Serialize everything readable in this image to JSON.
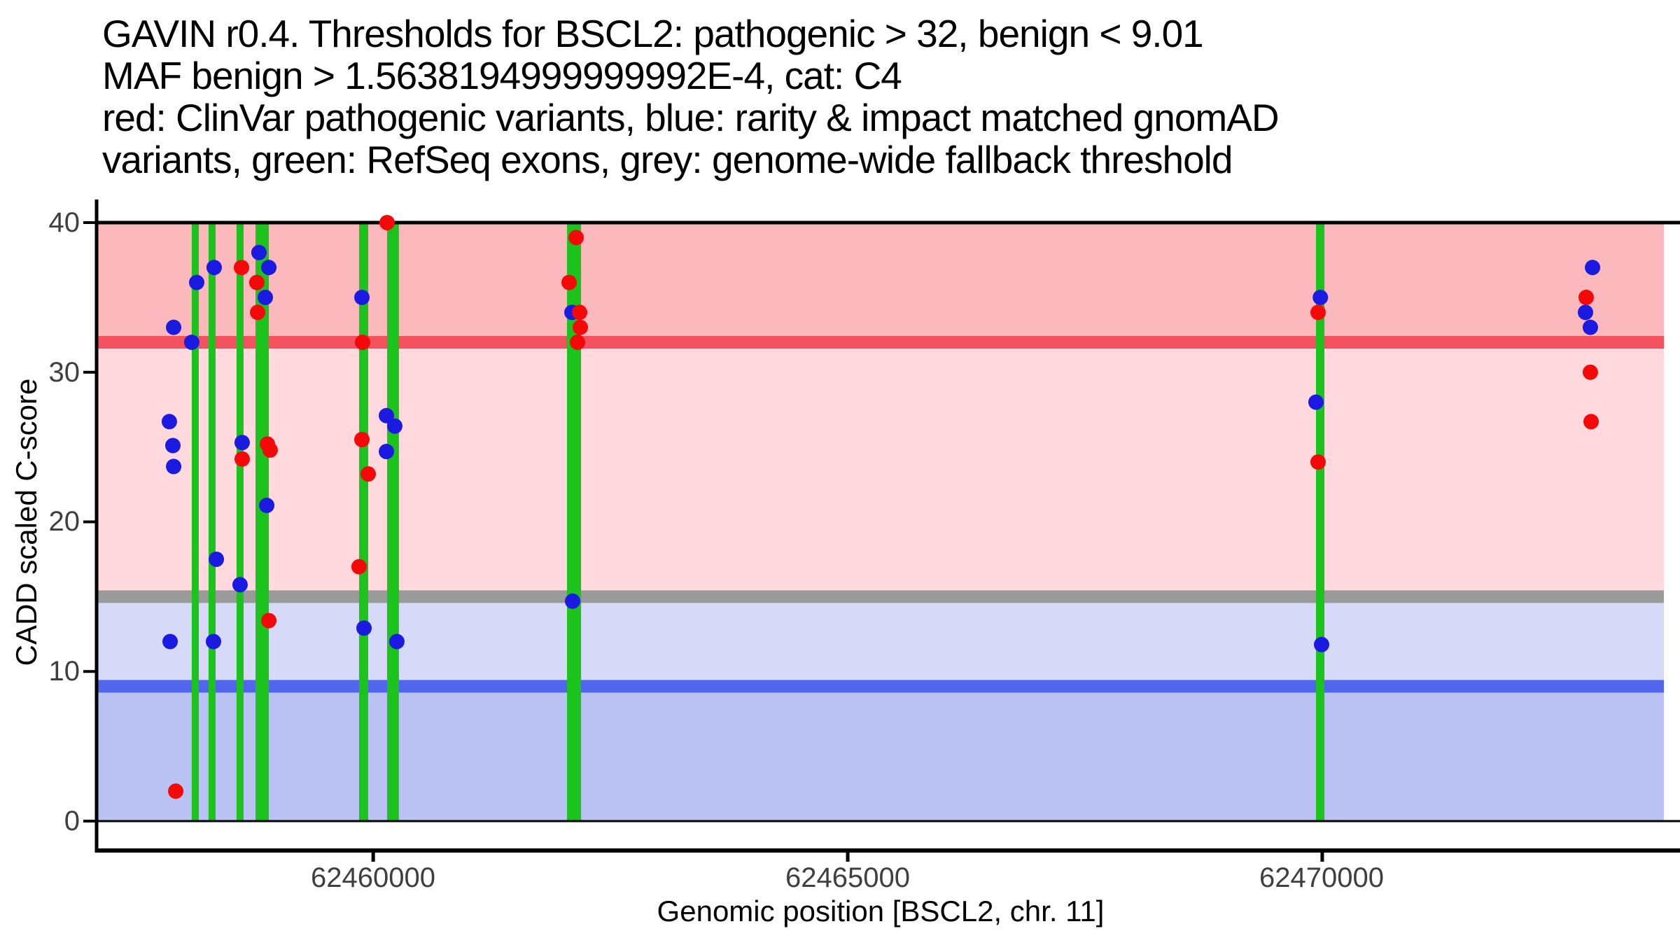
{
  "title": {
    "lines": [
      "GAVIN r0.4. Thresholds for BSCL2: pathogenic > 32, benign < 9.01",
      "MAF benign > 1.5638194999999992E-4, cat: C4",
      "red: ClinVar pathogenic variants, blue: rarity & impact matched gnomAD",
      "variants, green: RefSeq exons, grey: genome-wide fallback threshold"
    ]
  },
  "axes": {
    "y": {
      "label": "CADD scaled C-score",
      "tick_labels": [
        "40",
        "30",
        "20",
        "10",
        "0"
      ]
    },
    "x": {
      "label": "Genomic position [BSCL2, chr. 11]",
      "tick_labels": [
        "62460000",
        "62465000",
        "62470000"
      ]
    }
  },
  "colors": {
    "band_pathogenic": "#FBB8BD",
    "band_intermediate_upper": "#FFD9DE",
    "band_intermediate_lower": "#D6DAF8",
    "band_benign": "#B9C2F3",
    "line_pathogenic": "#F4515F",
    "line_fallback": "#9A9A9A",
    "line_benign": "#5066EC",
    "exon": "#1DC31D",
    "dot_clinvar": "#F50808",
    "dot_gnomad": "#1A1AE0",
    "axis": "#000000",
    "tick_text": "#3f3f3f"
  },
  "chart_data": {
    "type": "scatter",
    "title": "GAVIN r0.4. Thresholds for BSCL2: pathogenic > 32, benign < 9.01 MAF benign > 1.5638194999999992E-4, cat: C4",
    "xlabel": "Genomic position [BSCL2, chr. 11]",
    "ylabel": "CADD scaled C-score",
    "xlim": [
      62457100,
      62473600
    ],
    "ylim": [
      0,
      40
    ],
    "x_ticks": [
      62460000,
      62465000,
      62470000
    ],
    "y_ticks": [
      0,
      10,
      20,
      30,
      40
    ],
    "gene": "BSCL2",
    "chromosome": "11",
    "category": "C4",
    "maf_benign": "1.5638194999999992E-4",
    "thresholds": {
      "pathogenic_cadd": 32,
      "benign_cadd": 9.01,
      "genome_wide_fallback": 15
    },
    "threshold_line_thickness_units": 0.85,
    "bands": [
      {
        "name": "pathogenic-zone",
        "from": 32,
        "to": 40,
        "color_key": "band_pathogenic"
      },
      {
        "name": "intermediate-upper-zone",
        "from": 15,
        "to": 32,
        "color_key": "band_intermediate_upper"
      },
      {
        "name": "intermediate-lower-zone",
        "from": 9.01,
        "to": 15,
        "color_key": "band_intermediate_lower"
      },
      {
        "name": "benign-zone",
        "from": 0,
        "to": 9.01,
        "color_key": "band_benign"
      }
    ],
    "exons": [
      [
        62458088,
        62458162
      ],
      [
        62458265,
        62458339
      ],
      [
        62458560,
        62458634
      ],
      [
        62458760,
        62458900
      ],
      [
        62459851,
        62459947
      ],
      [
        62460146,
        62460271
      ],
      [
        62462042,
        62462190
      ],
      [
        62469934,
        62470023
      ]
    ],
    "series": [
      {
        "name": "rarity & impact matched gnomAD variants",
        "color_key": "dot_gnomad",
        "points": [
          [
            62457852,
            26.7
          ],
          [
            62457860,
            12
          ],
          [
            62457889,
            25.1
          ],
          [
            62457897,
            23.7
          ],
          [
            62457897,
            33
          ],
          [
            62458088,
            32
          ],
          [
            62458140,
            36
          ],
          [
            62458317,
            12
          ],
          [
            62458324,
            37
          ],
          [
            62458347,
            17.5
          ],
          [
            62458597,
            15.8
          ],
          [
            62458619,
            25.3
          ],
          [
            62458796,
            38
          ],
          [
            62458863,
            35
          ],
          [
            62458878,
            21.1
          ],
          [
            62458900,
            37
          ],
          [
            62459881,
            35
          ],
          [
            62459903,
            12.9
          ],
          [
            62460139,
            27.1
          ],
          [
            62460139,
            24.7
          ],
          [
            62460227,
            26.4
          ],
          [
            62460249,
            12
          ],
          [
            62462094,
            34
          ],
          [
            62462101,
            14.7
          ],
          [
            62469934,
            28
          ],
          [
            62469980,
            35
          ],
          [
            62469993,
            11.8
          ],
          [
            62472774,
            34
          ],
          [
            62472825,
            33
          ],
          [
            62472848,
            37
          ]
        ]
      },
      {
        "name": "ClinVar pathogenic variants",
        "color_key": "dot_clinvar",
        "points": [
          [
            62457919,
            2
          ],
          [
            62458612,
            37
          ],
          [
            62458619,
            24.2
          ],
          [
            62458774,
            36
          ],
          [
            62458782,
            34
          ],
          [
            62458885,
            25.2
          ],
          [
            62458914,
            24.8
          ],
          [
            62458900,
            13.4
          ],
          [
            62459851,
            17
          ],
          [
            62459881,
            25.5
          ],
          [
            62459888,
            32
          ],
          [
            62459947,
            23.2
          ],
          [
            62460146,
            40
          ],
          [
            62462064,
            36
          ],
          [
            62462138,
            39
          ],
          [
            62462153,
            32
          ],
          [
            62462175,
            34
          ],
          [
            62462182,
            33
          ],
          [
            62469956,
            34
          ],
          [
            62469956,
            24
          ],
          [
            62472781,
            35
          ],
          [
            62472825,
            30
          ],
          [
            62472833,
            26.7
          ]
        ]
      }
    ]
  }
}
